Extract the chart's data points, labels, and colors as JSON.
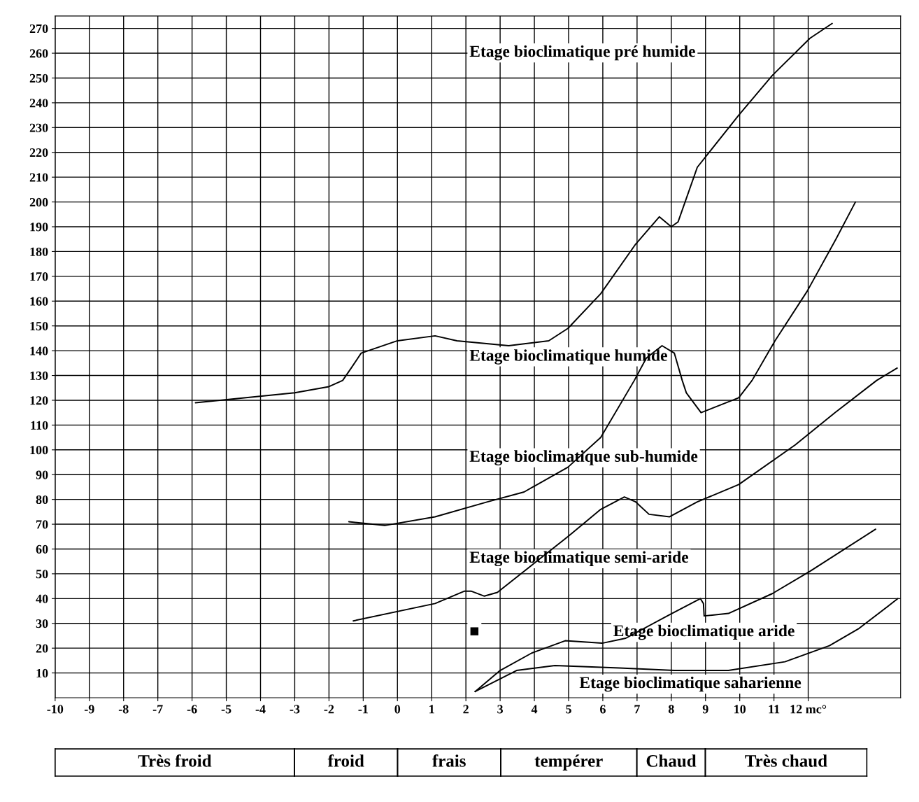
{
  "chart_data": {
    "type": "line",
    "xlim": [
      -10,
      14.7
    ],
    "ylim": [
      0,
      275
    ],
    "xticks": [
      -10,
      -9,
      -8,
      -7,
      -6,
      -5,
      -4,
      -3,
      -2,
      -1,
      0,
      1,
      2,
      3,
      4,
      5,
      6,
      7,
      8,
      9,
      10,
      11,
      {
        "value": 12,
        "label": "12 mc°"
      }
    ],
    "yticks": [
      10,
      20,
      30,
      40,
      50,
      60,
      70,
      80,
      90,
      100,
      110,
      120,
      130,
      140,
      150,
      160,
      170,
      180,
      190,
      200,
      210,
      220,
      230,
      240,
      250,
      260,
      270
    ],
    "grid": true,
    "marker": "none",
    "line_style": "solid",
    "series": [
      {
        "color": "#000000",
        "x": [
          -5.9,
          -3,
          -2.0,
          -1.6,
          -1.35,
          -1.06,
          0,
          1.1,
          1.74,
          3.25,
          4.42,
          4.98,
          5.94,
          6.96,
          7.65,
          8.0,
          8.2,
          8.76,
          9.97,
          10.95,
          12.05,
          12.7
        ],
        "values": [
          119,
          123,
          125.5,
          128,
          133,
          139,
          144,
          146,
          144,
          142,
          144,
          149,
          163,
          183,
          194,
          190,
          192,
          214,
          235,
          251,
          266,
          272
        ]
      },
      {
        "color": "#000000",
        "x": [
          -1.42,
          -0.37,
          1.1,
          2.63,
          3.7,
          4.98,
          5.94,
          6.92,
          7.27,
          7.73,
          8.09,
          8.32,
          8.44,
          8.87,
          9.97,
          10.36,
          11.03,
          11.97,
          12.81,
          13.38
        ],
        "values": [
          71,
          69.5,
          73,
          79,
          83,
          93,
          105,
          128,
          137,
          142,
          139,
          128,
          123,
          115,
          121,
          128,
          144,
          164,
          185,
          200
        ]
      },
      {
        "color": "#000000",
        "x": [
          -1.29,
          1.1,
          1.96,
          2.15,
          2.54,
          2.92,
          4.98,
          5.94,
          6.63,
          6.96,
          7.35,
          7.95,
          8.76,
          9.97,
          11.62,
          12.78,
          14.0,
          14.6
        ],
        "values": [
          31,
          38,
          43,
          43,
          41,
          42.5,
          65,
          76,
          81,
          79,
          74,
          73,
          79,
          86,
          102,
          115,
          128,
          133
        ]
      },
      {
        "color": "#000000",
        "x": [
          2.27,
          3.0,
          3.92,
          4.9,
          5.98,
          6.67,
          7.95,
          8.85,
          8.94,
          8.96,
          9.67,
          10.95,
          12.05,
          13.97
        ],
        "values": [
          2.5,
          11,
          18,
          23,
          22,
          24,
          33.5,
          40,
          38,
          33,
          34,
          42,
          51,
          68
        ]
      },
      {
        "color": "#000000",
        "x": [
          2.27,
          3.48,
          4.6,
          6.49,
          8.09,
          9.67,
          11.32,
          12.62,
          13.49,
          14.62
        ],
        "values": [
          2.5,
          11,
          13,
          12,
          11,
          11,
          14.5,
          21,
          28,
          40
        ]
      }
    ],
    "annotations": [
      "Etage bioclimatique pré humide",
      "Etage bioclimatique humide",
      "Etage bioclimatique sub-humide",
      "Etage bioclimatique semi-aride",
      "■",
      "Etage bioclimatique aride",
      "Etage bioclimatique saharienne",
      "Très froid",
      "froid",
      "frais",
      "tempérer",
      "Chaud",
      "Très chaud"
    ]
  }
}
